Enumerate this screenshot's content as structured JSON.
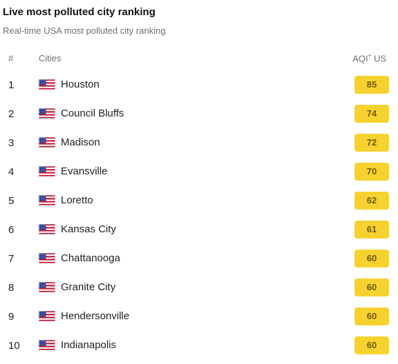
{
  "header": {
    "title": "Live most polluted city ranking",
    "subtitle": "Real-time USA most polluted city ranking"
  },
  "columns": {
    "rank": "#",
    "city": "Cities",
    "aqi_main": "AQI",
    "aqi_sup": "+",
    "aqi_unit": " US"
  },
  "colors": {
    "aqi_badge": "#f6d22f",
    "aqi_text": "#6e5a00"
  },
  "rows": [
    {
      "rank": "1",
      "flag": "us-flag-icon",
      "city": "Houston",
      "aqi": "85"
    },
    {
      "rank": "2",
      "flag": "us-flag-icon",
      "city": "Council Bluffs",
      "aqi": "74"
    },
    {
      "rank": "3",
      "flag": "us-flag-icon",
      "city": "Madison",
      "aqi": "72"
    },
    {
      "rank": "4",
      "flag": "us-flag-icon",
      "city": "Evansville",
      "aqi": "70"
    },
    {
      "rank": "5",
      "flag": "us-flag-icon",
      "city": "Loretto",
      "aqi": "62"
    },
    {
      "rank": "6",
      "flag": "us-flag-icon",
      "city": "Kansas City",
      "aqi": "61"
    },
    {
      "rank": "7",
      "flag": "us-flag-icon",
      "city": "Chattanooga",
      "aqi": "60"
    },
    {
      "rank": "8",
      "flag": "us-flag-icon",
      "city": "Granite City",
      "aqi": "60"
    },
    {
      "rank": "9",
      "flag": "us-flag-icon",
      "city": "Hendersonville",
      "aqi": "60"
    },
    {
      "rank": "10",
      "flag": "us-flag-icon",
      "city": "Indianapolis",
      "aqi": "60"
    }
  ]
}
